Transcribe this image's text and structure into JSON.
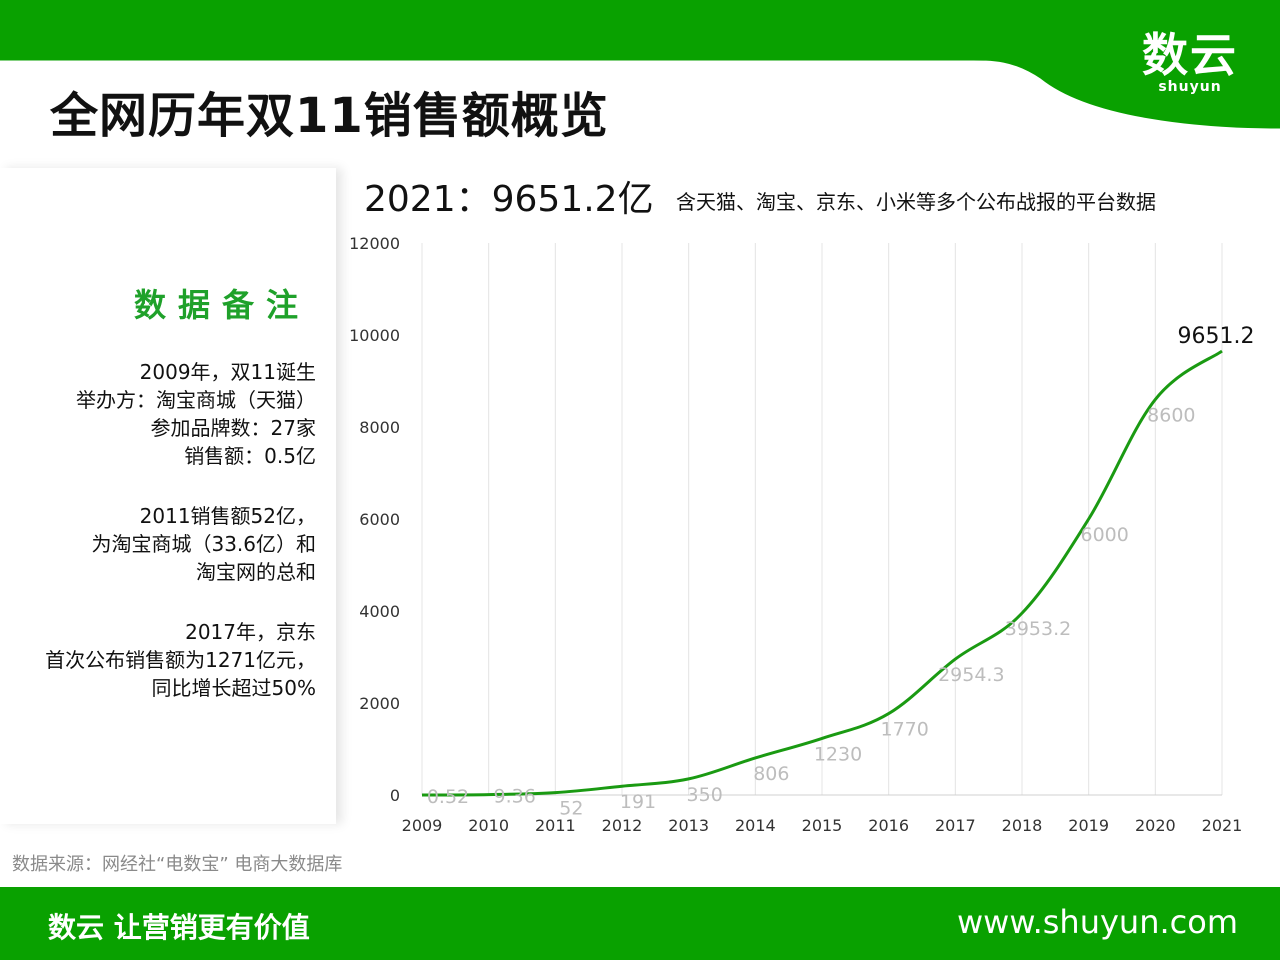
{
  "header": {
    "title": "全网历年双11销售额概览",
    "logo_cn": "数云",
    "logo_en": "shuyun"
  },
  "notes": {
    "title": "数据备注",
    "blocks": [
      [
        "2009年，双11诞生",
        "举办方：淘宝商城（天猫）",
        "参加品牌数：27家",
        "销售额：0.5亿"
      ],
      [
        "2011销售额52亿，",
        "为淘宝商城（33.6亿）和",
        "淘宝网的总和"
      ],
      [
        "2017年，京东",
        "首次公布销售额为1271亿元，",
        "同比增长超过50%"
      ]
    ]
  },
  "chart_data": {
    "type": "line",
    "headline": "2021：9651.2亿",
    "subtitle": "含天猫、淘宝、京东、小米等多个公布战报的平台数据",
    "categories": [
      "2009",
      "2010",
      "2011",
      "2012",
      "2013",
      "2014",
      "2015",
      "2016",
      "2017",
      "2018",
      "2019",
      "2020",
      "2021"
    ],
    "values": [
      0.52,
      9.36,
      52,
      191,
      350,
      806,
      1230,
      1770,
      2954.3,
      3953.2,
      6000,
      8600,
      9651.2
    ],
    "data_labels": [
      "0.52",
      "9.36",
      "52",
      "191",
      "350",
      "806",
      "1230",
      "1770",
      "2954.3",
      "3953.2",
      "6000",
      "8600",
      "9651.2"
    ],
    "y_ticks": [
      "0",
      "2000",
      "4000",
      "6000",
      "8000",
      "10000",
      "12000"
    ],
    "ylim": [
      0,
      12000
    ],
    "xlabel": "",
    "ylabel": "",
    "grid": "vertical",
    "line_color": "#1a9a12",
    "label_color": "#bdbdbd",
    "highlight_label_color": "#111111"
  },
  "source": "数据来源：网经社“电数宝” 电商大数据库",
  "footer": {
    "slogan": "数云 让营销更有价值",
    "url": "www.shuyun.com"
  },
  "colors": {
    "brand_green": "#09a100",
    "notes_title": "#1fa12a"
  }
}
